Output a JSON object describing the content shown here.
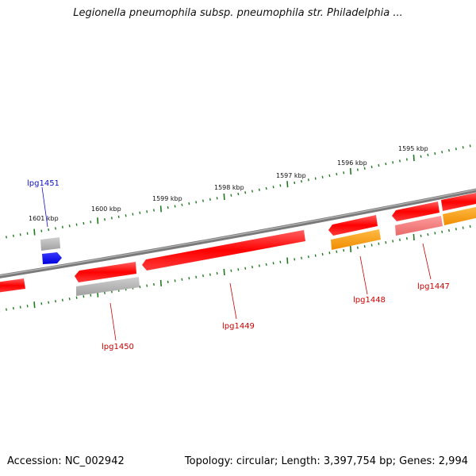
{
  "title": "Legionella pneumophila subsp. pneumophila str. Philadelphia ...",
  "footer": {
    "accession": "Accession: NC_002942",
    "topology": "Topology: circular; Length: 3,397,754 bp; Genes: 2,994"
  },
  "ticks": [
    "1601 kbp",
    "1600 kbp",
    "1599 kbp",
    "1598 kbp",
    "1597 kbp",
    "1596 kbp",
    "1595 kbp"
  ],
  "genes": [
    {
      "id": "lpg1451",
      "label": "lpg1451",
      "color": "#1010cc"
    },
    {
      "id": "lpg1450",
      "label": "lpg1450",
      "color": "#cc0000"
    },
    {
      "id": "lpg1449",
      "label": "lpg1449",
      "color": "#cc0000"
    },
    {
      "id": "lpg1448",
      "label": "lpg1448",
      "color": "#cc0000"
    },
    {
      "id": "lpg1447",
      "label": "lpg1447",
      "color": "#cc0000"
    }
  ],
  "colors": {
    "backbone": "#777777",
    "tick_track": "#1f7a1f",
    "gene_red": "#ff1a1a",
    "gene_orange": "#ff9900",
    "gene_gray": "#9a9a9a",
    "gene_blue": "#0b0bff",
    "gene_pink": "#f07a7a"
  }
}
